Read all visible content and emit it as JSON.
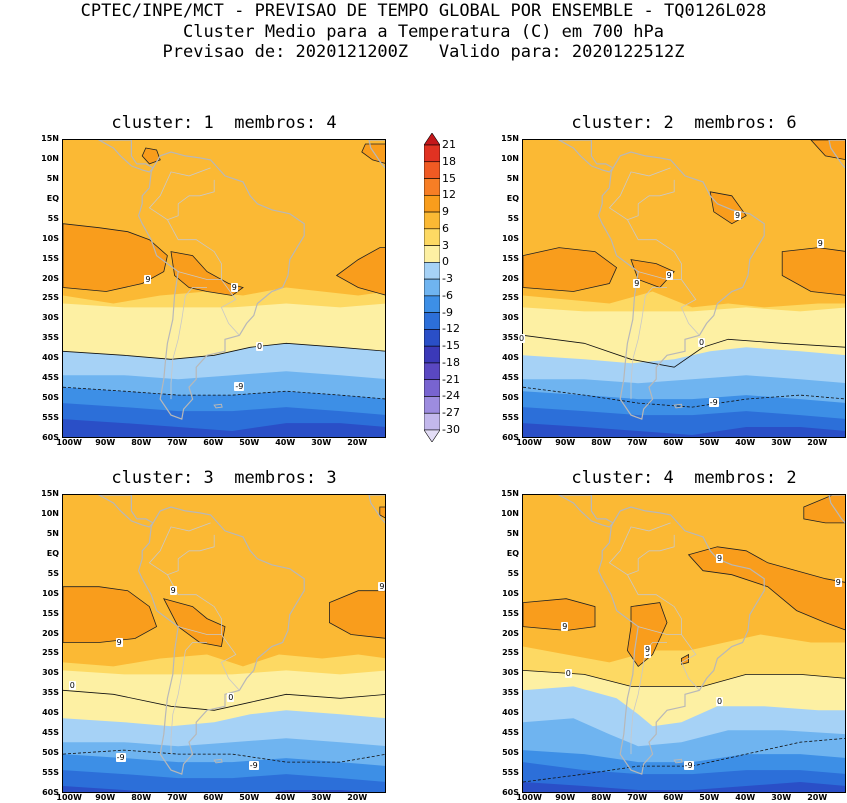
{
  "header": {
    "line1": "CPTEC/INPE/MCT - PREVISAO DE TEMPO GLOBAL POR ENSEMBLE - TQ0126L028",
    "line2": "Cluster Medio para a Temperatura (C) em 700 hPa",
    "line3": "Previsao de: 2020121200Z   Valido para: 2020122512Z"
  },
  "lat_ticks": [
    "15N",
    "10N",
    "5N",
    "EQ",
    "5S",
    "10S",
    "15S",
    "20S",
    "25S",
    "30S",
    "35S",
    "40S",
    "45S",
    "50S",
    "55S",
    "60S"
  ],
  "lon_ticks": [
    "100W",
    "90W",
    "80W",
    "70W",
    "60W",
    "50W",
    "40W",
    "30W",
    "20W"
  ],
  "colorbar": {
    "levels": [
      "21",
      "18",
      "15",
      "12",
      "9",
      "6",
      "3",
      "0",
      "-3",
      "-6",
      "-9",
      "-12",
      "-15",
      "-18",
      "-21",
      "-24",
      "-27",
      "-30"
    ],
    "colors": [
      "#c4171a",
      "#e03222",
      "#f05a23",
      "#f77e25",
      "#f99d1c",
      "#fbb934",
      "#fdd963",
      "#fdf0a3",
      "#a6d2f6",
      "#6fb4f0",
      "#3d8fe6",
      "#2c6fd9",
      "#2a4fc7",
      "#3b39b8",
      "#5a48c2",
      "#7864d0",
      "#9d8cdf",
      "#c3b8ec",
      "#e3ddf6"
    ]
  },
  "panels": [
    {
      "title": "cluster: 1  membros: 4",
      "contour_labels": [
        "9",
        "9",
        "0",
        "-9"
      ]
    },
    {
      "title": "cluster: 2  membros: 6",
      "contour_labels": [
        "9",
        "9",
        "9",
        "9",
        "0",
        "0",
        "-9"
      ]
    },
    {
      "title": "cluster: 3  membros: 3",
      "contour_labels": [
        "9",
        "9",
        "9",
        "0",
        "0",
        "-9",
        "-9"
      ]
    },
    {
      "title": "cluster: 4  membros: 2",
      "contour_labels": [
        "9",
        "9",
        "9",
        "9",
        "9",
        "0",
        "0",
        "-9"
      ]
    }
  ]
}
